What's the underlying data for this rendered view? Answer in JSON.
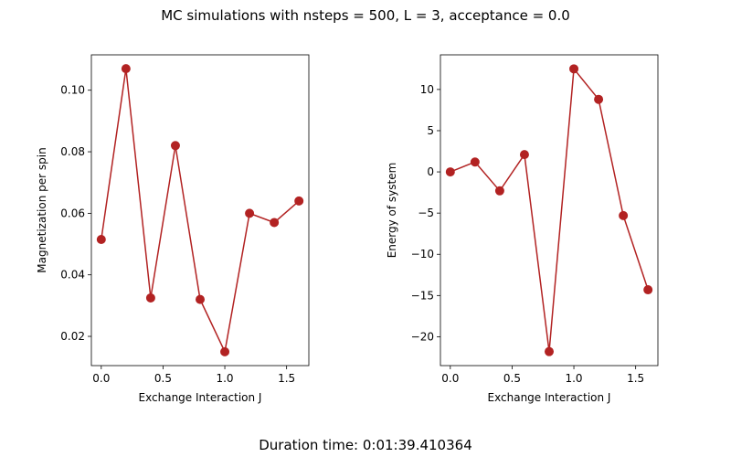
{
  "figure": {
    "suptitle": "MC simulations with nsteps = 500, L = 3, acceptance = 0.0",
    "footer": "Duration time: 0:01:39.410364"
  },
  "series_color": "#b22222",
  "chart_data": [
    {
      "type": "line",
      "xlabel": "Exchange Interaction J",
      "ylabel": "Magnetization per spin",
      "x": [
        0.0,
        0.2,
        0.4,
        0.6,
        0.8,
        1.0,
        1.2,
        1.4,
        1.6
      ],
      "y": [
        0.0515,
        0.107,
        0.0325,
        0.082,
        0.032,
        0.015,
        0.06,
        0.057,
        0.064
      ],
      "xlim": [
        -0.08,
        1.68
      ],
      "ylim": [
        0.0105,
        0.1115
      ],
      "xticks": [
        0.0,
        0.5,
        1.0,
        1.5
      ],
      "xtick_labels": [
        "0.0",
        "0.5",
        "1.0",
        "1.5"
      ],
      "yticks": [
        0.02,
        0.04,
        0.06,
        0.08,
        0.1
      ],
      "ytick_labels": [
        "0.02",
        "0.04",
        "0.06",
        "0.08",
        "0.10"
      ],
      "marker": "circle",
      "grid": false
    },
    {
      "type": "line",
      "xlabel": "Exchange Interaction J",
      "ylabel": "Energy of system",
      "x": [
        0.0,
        0.2,
        0.4,
        0.6,
        0.8,
        1.0,
        1.2,
        1.4,
        1.6
      ],
      "y": [
        0.0,
        1.2,
        -2.3,
        2.1,
        -21.8,
        12.5,
        8.8,
        -5.3,
        -14.3
      ],
      "xlim": [
        -0.08,
        1.68
      ],
      "ylim": [
        -23.5,
        14.2
      ],
      "xticks": [
        0.0,
        0.5,
        1.0,
        1.5
      ],
      "xtick_labels": [
        "0.0",
        "0.5",
        "1.0",
        "1.5"
      ],
      "yticks": [
        -20,
        -15,
        -10,
        -5,
        0,
        5,
        10
      ],
      "ytick_labels": [
        "−20",
        "−15",
        "−10",
        "−5",
        "0",
        "5",
        "10"
      ],
      "marker": "circle",
      "grid": false
    }
  ]
}
